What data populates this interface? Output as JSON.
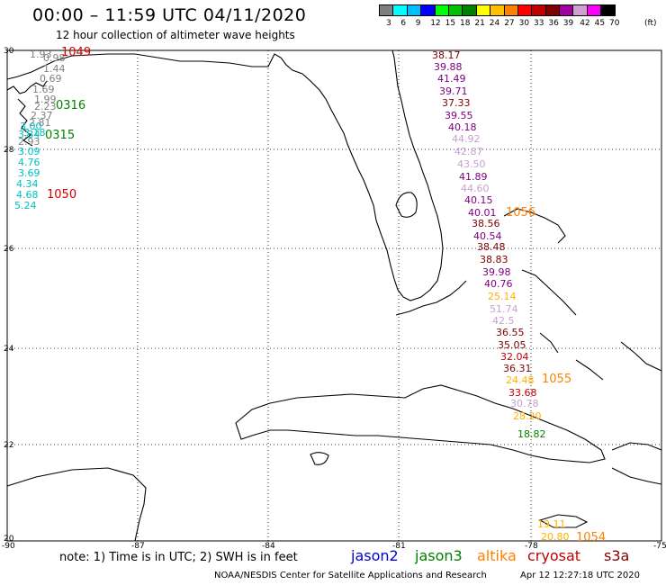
{
  "header": {
    "title": "00:00 – 11:59 UTC 04/11/2020",
    "subtitle": "12 hour collection of altimeter wave heights"
  },
  "legend": {
    "colors": [
      "#7f7f7f",
      "#00ffff",
      "#00bfff",
      "#0000ff",
      "#00ff00",
      "#00c000",
      "#008000",
      "#ffff00",
      "#ffc000",
      "#ff8000",
      "#ff0000",
      "#c00000",
      "#800000",
      "#a000a0",
      "#d0a0d0",
      "#ff00ff",
      "#000000"
    ],
    "labels": [
      "3",
      "6",
      "9",
      "12",
      "15",
      "18",
      "21",
      "24",
      "27",
      "30",
      "33",
      "36",
      "39",
      "42",
      "45",
      "70"
    ],
    "unit": "(ft)"
  },
  "axes": {
    "lat_labels": [
      "30",
      "28",
      "26",
      "24",
      "22",
      "20"
    ],
    "lon_labels": [
      "-90",
      "-87",
      "-84",
      "-81",
      "-78",
      "-75"
    ]
  },
  "annotations": [
    {
      "text": "1049",
      "color": "#d00000"
    },
    {
      "text": "0316",
      "color": "#008000"
    },
    {
      "text": "0315",
      "color": "#008000"
    },
    {
      "text": "1050",
      "color": "#d00000"
    },
    {
      "text": "1056",
      "color": "#ff8000"
    },
    {
      "text": "1055",
      "color": "#ff8000"
    },
    {
      "text": "1054",
      "color": "#ff8000"
    }
  ],
  "track_west": [
    {
      "v": "1.93",
      "c": "#808080"
    },
    {
      "v": "0.98",
      "c": "#808080"
    },
    {
      "v": "1.44",
      "c": "#808080"
    },
    {
      "v": "0.69",
      "c": "#808080"
    },
    {
      "v": "1.69",
      "c": "#808080"
    },
    {
      "v": "1.99",
      "c": "#808080"
    },
    {
      "v": "2.23",
      "c": "#808080"
    },
    {
      "v": "2.37",
      "c": "#808080"
    },
    {
      "v": "2.81",
      "c": "#808080"
    },
    {
      "v": "3.00",
      "c": "#00c0c0"
    },
    {
      "v": "3.34",
      "c": "#00c0c0"
    },
    {
      "v": "3.18",
      "c": "#00c0c0"
    },
    {
      "v": "2.93",
      "c": "#808080"
    },
    {
      "v": "3.09",
      "c": "#00c0c0"
    },
    {
      "v": "4.76",
      "c": "#00c0c0"
    },
    {
      "v": "3.69",
      "c": "#00c0c0"
    },
    {
      "v": "4.34",
      "c": "#00c0c0"
    },
    {
      "v": "4.68",
      "c": "#00c0c0"
    },
    {
      "v": "5.24",
      "c": "#00c0c0"
    }
  ],
  "track_east": [
    {
      "v": "38.17",
      "c": "#800000"
    },
    {
      "v": "39.88",
      "c": "#800080"
    },
    {
      "v": "41.49",
      "c": "#800080"
    },
    {
      "v": "39.71",
      "c": "#800080"
    },
    {
      "v": "37.33",
      "c": "#800000"
    },
    {
      "v": "39.55",
      "c": "#800080"
    },
    {
      "v": "40.18",
      "c": "#800080"
    },
    {
      "v": "44.92",
      "c": "#c8a0d0"
    },
    {
      "v": "42.87",
      "c": "#c8a0d0"
    },
    {
      "v": "43.50",
      "c": "#c8a0d0"
    },
    {
      "v": "41.89",
      "c": "#800080"
    },
    {
      "v": "44.60",
      "c": "#c8a0d0"
    },
    {
      "v": "40.15",
      "c": "#800080"
    },
    {
      "v": "40.01",
      "c": "#800080"
    },
    {
      "v": "38.56",
      "c": "#800000"
    },
    {
      "v": "40.54",
      "c": "#800080"
    },
    {
      "v": "38.48",
      "c": "#800000"
    },
    {
      "v": "38.83",
      "c": "#800000"
    },
    {
      "v": "39.98",
      "c": "#800080"
    },
    {
      "v": "40.76",
      "c": "#800080"
    },
    {
      "v": "25.14",
      "c": "#ffb000"
    },
    {
      "v": "51.74",
      "c": "#c8a0d0"
    },
    {
      "v": "42.5",
      "c": "#c8a0d0"
    },
    {
      "v": "36.55",
      "c": "#800000"
    },
    {
      "v": "35.05",
      "c": "#800000"
    },
    {
      "v": "32.04",
      "c": "#c00000"
    },
    {
      "v": "36.31",
      "c": "#800000"
    },
    {
      "v": "24.48",
      "c": "#ffb000"
    },
    {
      "v": "33.68",
      "c": "#c00000"
    },
    {
      "v": "30.78",
      "c": "#c8a0d0"
    },
    {
      "v": "28.20",
      "c": "#ffb000"
    },
    {
      "v": "18.82",
      "c": "#008000"
    },
    {
      "v": "19.11",
      "c": "#ffb000"
    },
    {
      "v": "20.80",
      "c": "#ffb000"
    }
  ],
  "footer": {
    "note": "note: 1) Time is in UTC; 2) SWH is in feet",
    "sat1": {
      "label": "jason2",
      "color": "#0000d0"
    },
    "sat2": {
      "label": "jason3",
      "color": "#008000"
    },
    "sat3": {
      "label": "altika",
      "color": "#ff8000"
    },
    "sat4": {
      "label": "cryosat",
      "color": "#c00000"
    },
    "sat5": {
      "label": "s3a",
      "color": "#800000"
    },
    "credit": "NOAA/NESDIS Center for Satellite Applications and Research",
    "timestamp": "Apr 12 12:27:18 UTC 2020"
  }
}
